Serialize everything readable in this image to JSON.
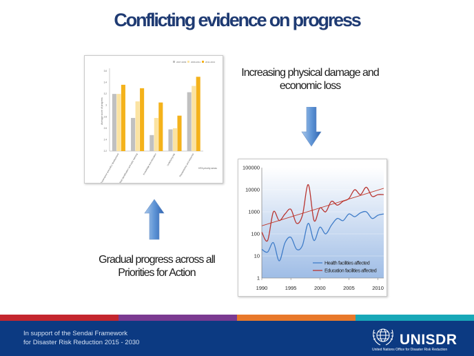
{
  "slide": {
    "title": "Conflicting evidence on progress"
  },
  "captions": {
    "right": "Increasing physical damage and economic loss",
    "left": "Gradual progress across all Priorities for Action"
  },
  "bar_chart": {
    "legend": [
      "2007-2009",
      "2009-2011",
      "2011-2013"
    ],
    "ylabel": "Average score of progress",
    "xlabel": "HFA priority areas",
    "yticks": [
      "3.6",
      "3.4",
      "3.2",
      "3",
      "2.8",
      "2.6",
      "2.4",
      "2.2"
    ],
    "categories": [
      "Governance and policy development",
      "Risk identification and early warning",
      "Knowledge and education",
      "Underlying risk",
      "Preparedness and response"
    ]
  },
  "line_chart": {
    "yticks": [
      "100000",
      "10000",
      "1000",
      "100",
      "10",
      "1"
    ],
    "xticks": [
      "1990",
      "1995",
      "2000",
      "2005",
      "2010"
    ],
    "legend": [
      "Health facilities affected",
      "Education facilities affected"
    ]
  },
  "footer": {
    "line1": "In support of the Sendai Framework",
    "line2": "for Disaster Risk Reduction 2015 - 2030",
    "logo": "UNISDR",
    "logo_sub": "United Nations Office for Disaster Risk Reduction"
  },
  "chart_data": [
    {
      "type": "bar",
      "title": "",
      "xlabel": "HFA priority areas",
      "ylabel": "Average score of progress",
      "ylim": [
        2.2,
        3.6
      ],
      "categories": [
        "Governance and policy development",
        "Risk identification and early warning",
        "Knowledge and education",
        "Underlying risk",
        "Preparedness and response"
      ],
      "series": [
        {
          "name": "2007-2009",
          "values": [
            3.2,
            2.78,
            2.48,
            2.58,
            3.23
          ]
        },
        {
          "name": "2009-2011",
          "values": [
            3.2,
            3.07,
            2.78,
            2.6,
            3.34
          ]
        },
        {
          "name": "2011-2013",
          "values": [
            3.36,
            3.3,
            3.05,
            2.82,
            3.5
          ]
        }
      ],
      "colors": [
        "#c0c0c0",
        "#fbe3a2",
        "#f4b21b"
      ],
      "legend_position": "top-right"
    },
    {
      "type": "line",
      "title": "",
      "xlim": [
        1990,
        2011
      ],
      "ylim": [
        1,
        100000
      ],
      "yscale": "log",
      "series": [
        {
          "name": "Health facilities affected",
          "x": [
            1990,
            1991,
            1992,
            1993,
            1994,
            1995,
            1996,
            1997,
            1998,
            1999,
            2000,
            2001,
            2002,
            2003,
            2004,
            2005,
            2006,
            2007,
            2008,
            2009,
            2010,
            2011
          ],
          "y": [
            20,
            15,
            40,
            6,
            40,
            70,
            20,
            30,
            300,
            50,
            200,
            100,
            250,
            500,
            400,
            800,
            600,
            900,
            1000,
            500,
            700,
            800
          ],
          "color": "#3f7cc8"
        },
        {
          "name": "Education facilities affected",
          "x": [
            1990,
            1991,
            1992,
            1993,
            1994,
            1995,
            1996,
            1997,
            1998,
            1999,
            2000,
            2001,
            2002,
            2003,
            2004,
            2005,
            2006,
            2007,
            2008,
            2009,
            2010,
            2011
          ],
          "y": [
            120,
            50,
            1000,
            400,
            800,
            1300,
            300,
            700,
            17000,
            400,
            1500,
            1000,
            3000,
            2000,
            3000,
            4000,
            10000,
            6000,
            13000,
            5000,
            6000,
            6000
          ],
          "color": "#b83430"
        }
      ],
      "trendline": {
        "series": "Education facilities affected",
        "color": "#c0392b"
      },
      "legend_position": "bottom-right"
    }
  ]
}
